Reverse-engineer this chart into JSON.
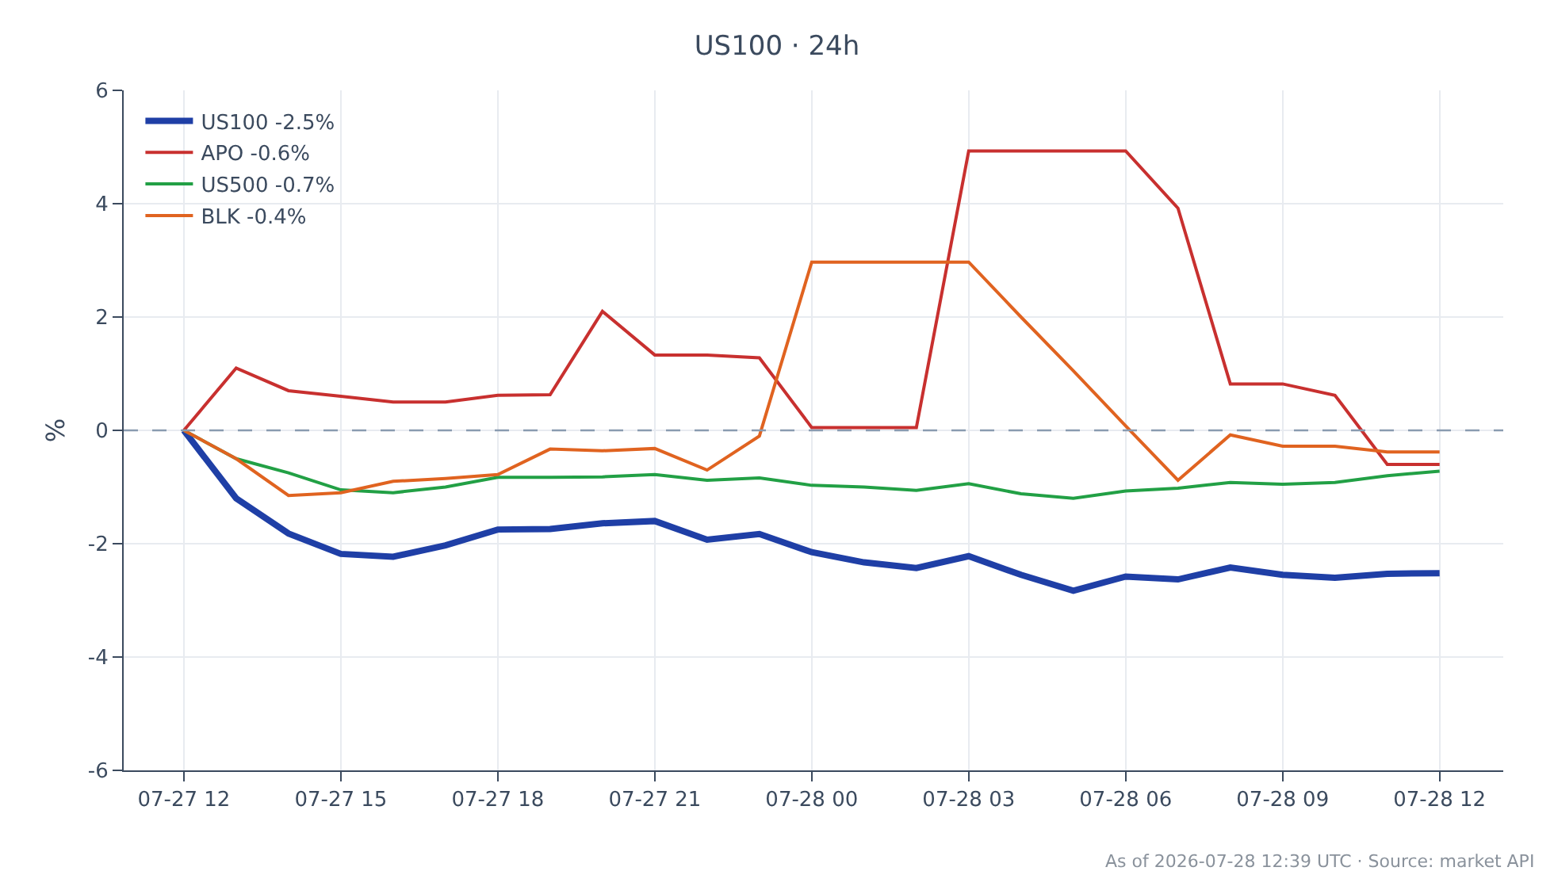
{
  "chart_data": {
    "type": "line",
    "title": "US100 · 24h",
    "ylabel": "%",
    "x": [
      "2026-07-27T12:00",
      "2026-07-27T13:00",
      "2026-07-27T14:00",
      "2026-07-27T15:00",
      "2026-07-27T16:00",
      "2026-07-27T17:00",
      "2026-07-27T18:00",
      "2026-07-27T19:00",
      "2026-07-27T20:00",
      "2026-07-27T21:00",
      "2026-07-27T22:00",
      "2026-07-27T23:00",
      "2026-07-28T00:00",
      "2026-07-28T01:00",
      "2026-07-28T02:00",
      "2026-07-28T03:00",
      "2026-07-28T04:00",
      "2026-07-28T05:00",
      "2026-07-28T06:00",
      "2026-07-28T07:00",
      "2026-07-28T08:00",
      "2026-07-28T09:00",
      "2026-07-28T10:00",
      "2026-07-28T11:00",
      "2026-07-28T12:00"
    ],
    "series": [
      {
        "name": "US100 -2.5%",
        "color": "#1f3fa6",
        "values": [
          0,
          -1.2,
          -1.82,
          -2.18,
          -2.23,
          -2.03,
          -1.75,
          -1.74,
          -1.64,
          -1.6,
          -1.93,
          -1.83,
          -2.15,
          -2.33,
          -2.43,
          -2.22,
          -2.55,
          -2.83,
          -2.58,
          -2.63,
          -2.42,
          -2.55,
          -2.6,
          -2.53,
          -2.52
        ]
      },
      {
        "name": "APO -0.6%",
        "color": "#c8302f",
        "values": [
          0,
          1.1,
          0.7,
          0.6,
          0.5,
          0.5,
          0.62,
          0.63,
          2.1,
          1.33,
          1.33,
          1.28,
          0.05,
          0.05,
          0.05,
          4.93,
          4.93,
          4.93,
          4.93,
          3.92,
          0.82,
          0.82,
          0.62,
          -0.6,
          -0.6
        ]
      },
      {
        "name": "US500 -0.7%",
        "color": "#22a045",
        "values": [
          0,
          -0.5,
          -0.75,
          -1.05,
          -1.1,
          -1.0,
          -0.83,
          -0.83,
          -0.82,
          -0.78,
          -0.88,
          -0.84,
          -0.97,
          -1.0,
          -1.06,
          -0.94,
          -1.12,
          -1.2,
          -1.07,
          -1.02,
          -0.92,
          -0.95,
          -0.92,
          -0.8,
          -0.72
        ]
      },
      {
        "name": "BLK -0.4%",
        "color": "#e06320",
        "values": [
          0,
          -0.5,
          -1.15,
          -1.1,
          -0.9,
          -0.85,
          -0.78,
          -0.33,
          -0.36,
          -0.32,
          -0.7,
          -0.1,
          2.97,
          2.97,
          2.97,
          2.97,
          2.0,
          1.05,
          0.08,
          -0.88,
          -0.08,
          -0.28,
          -0.28,
          -0.38,
          -0.38
        ]
      }
    ],
    "xlim": [
      "2026-07-27T10:51",
      "2026-07-28T13:13"
    ],
    "xticks": [
      {
        "value": "2026-07-27T12:00",
        "label": "07-27 12"
      },
      {
        "value": "2026-07-27T15:00",
        "label": "07-27 15"
      },
      {
        "value": "2026-07-27T18:00",
        "label": "07-27 18"
      },
      {
        "value": "2026-07-27T21:00",
        "label": "07-27 21"
      },
      {
        "value": "2026-07-28T00:00",
        "label": "07-28 00"
      },
      {
        "value": "2026-07-28T03:00",
        "label": "07-28 03"
      },
      {
        "value": "2026-07-28T06:00",
        "label": "07-28 06"
      },
      {
        "value": "2026-07-28T09:00",
        "label": "07-28 09"
      },
      {
        "value": "2026-07-28T12:00",
        "label": "07-28 12"
      }
    ],
    "ylim": [
      -6,
      6
    ],
    "yticks": [
      -6,
      -4,
      -2,
      0,
      2,
      4,
      6
    ],
    "ref_lines": [
      {
        "axis": "y",
        "value": 0,
        "color": "#8a9bb0",
        "line_style": "dashed"
      }
    ],
    "annotations": [
      "As of 2026-07-28 12:39 UTC · Source: market API"
    ],
    "grid": true,
    "legend": "top left",
    "marker": "none",
    "line_style": "solid"
  }
}
